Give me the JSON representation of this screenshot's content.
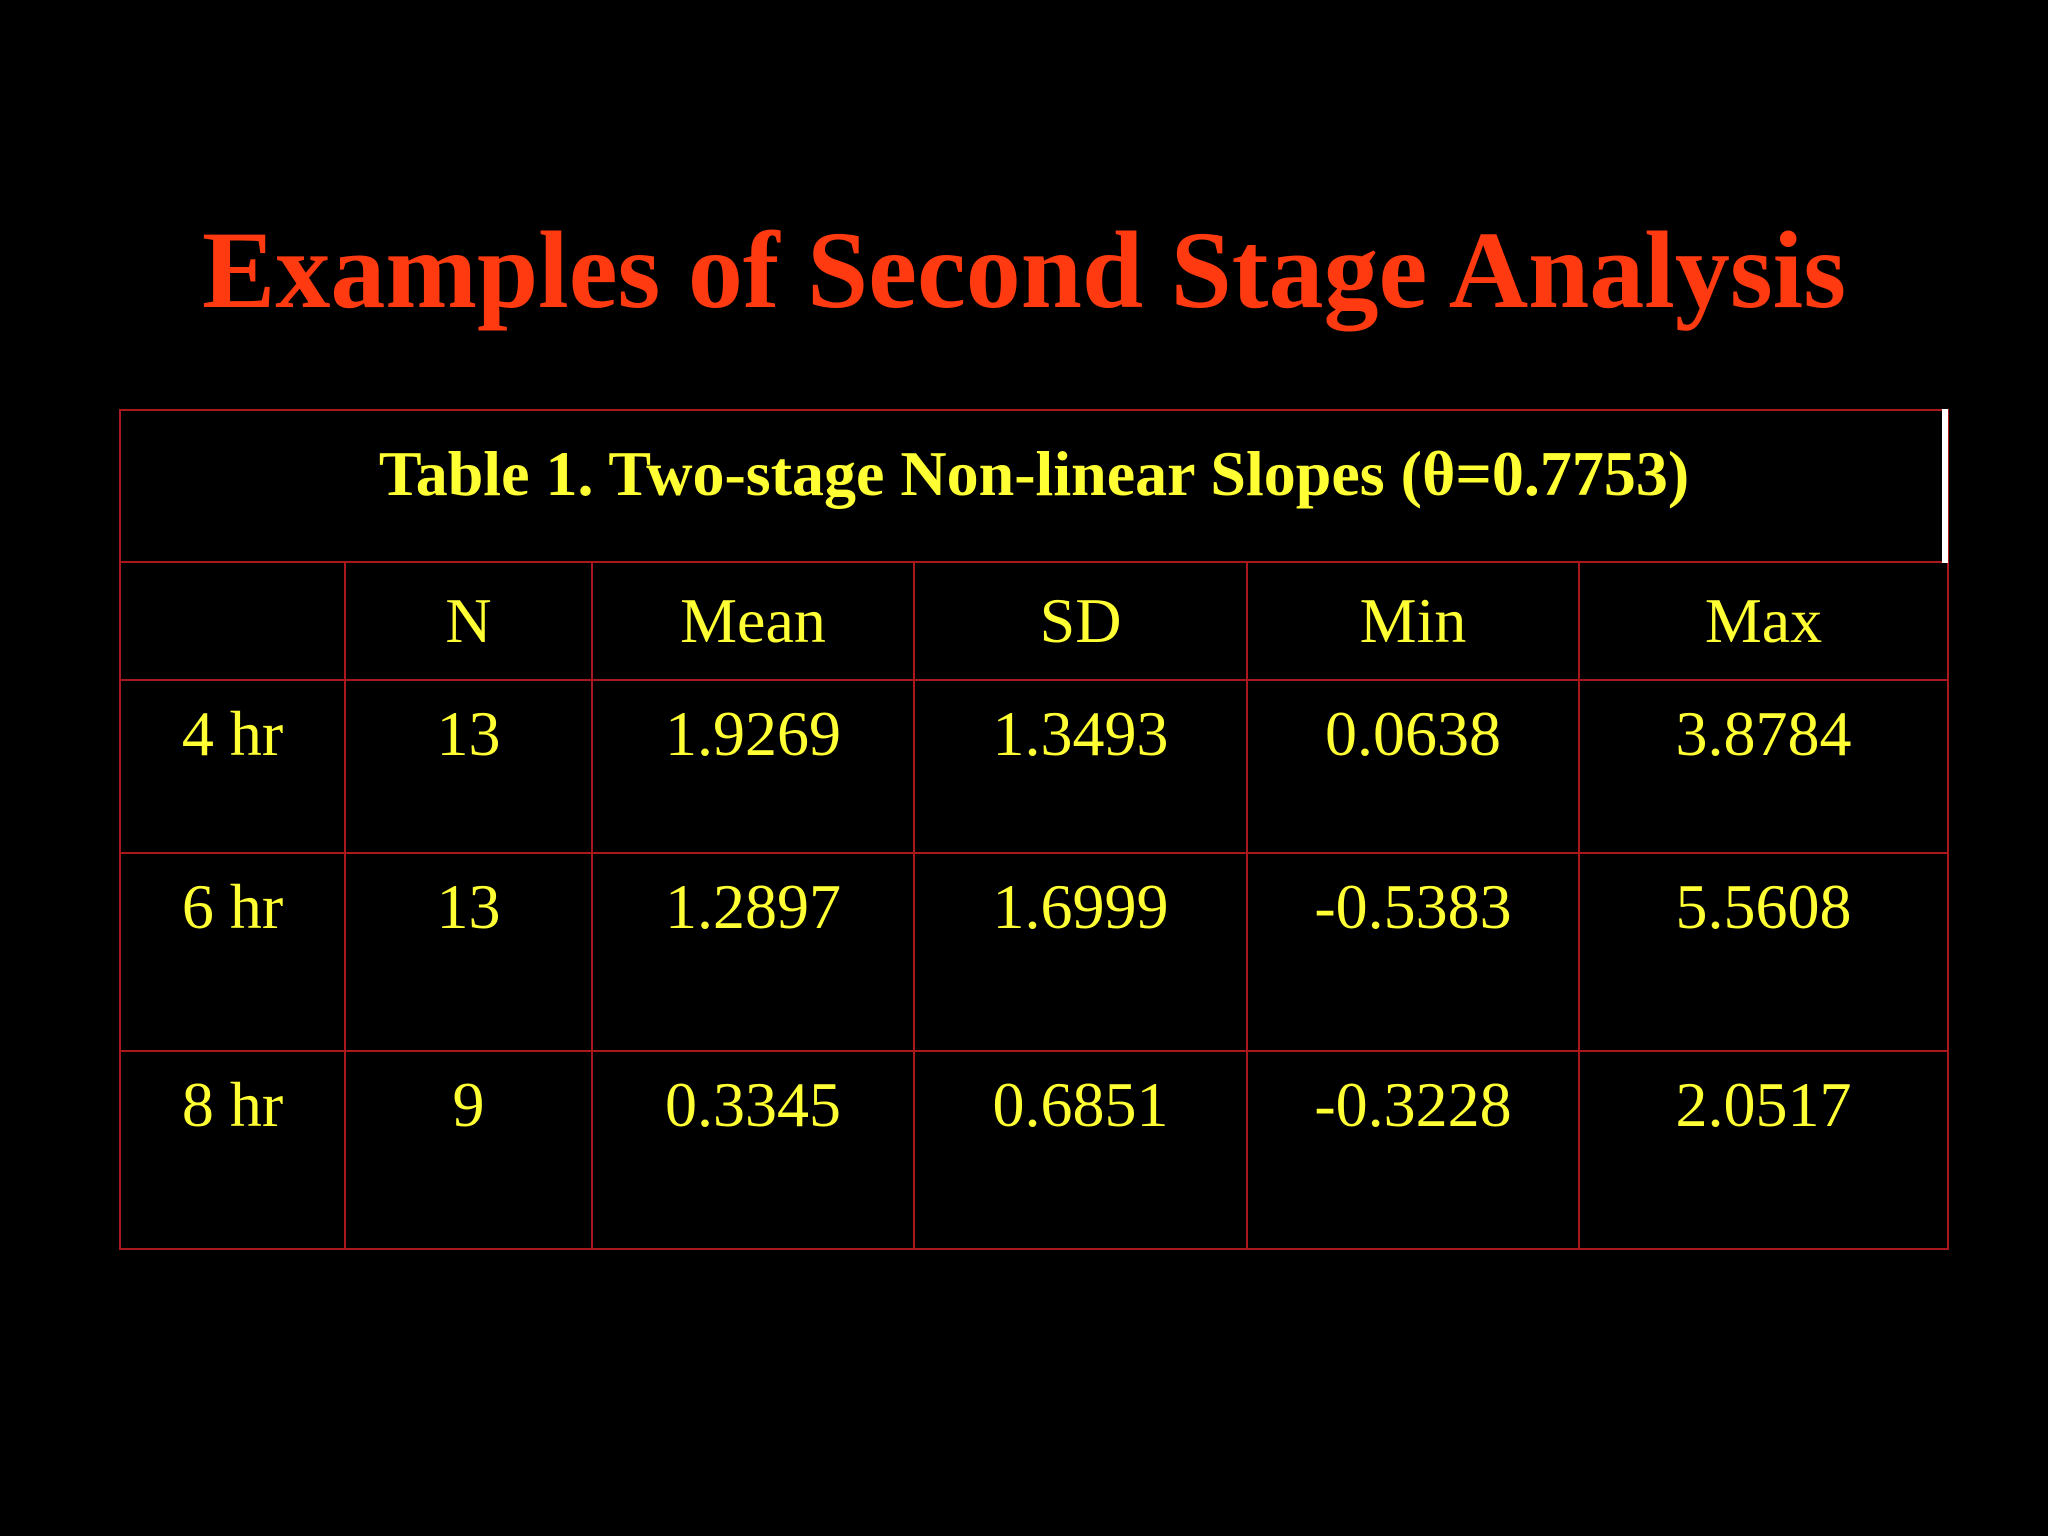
{
  "slide": {
    "title": "Examples of Second Stage Analysis"
  },
  "table": {
    "caption": "Table 1. Two-stage Non-linear Slopes (θ=0.7753)",
    "columns": [
      "",
      "N",
      "Mean",
      "SD",
      "Min",
      "Max"
    ],
    "rows": [
      {
        "label": "4 hr",
        "n": "13",
        "mean": "1.9269",
        "sd": "1.3493",
        "min": "0.0638",
        "max": "3.8784"
      },
      {
        "label": "6 hr",
        "n": "13",
        "mean": "1.2897",
        "sd": "1.6999",
        "min": "-0.5383",
        "max": "5.5608"
      },
      {
        "label": "8 hr",
        "n": "9",
        "mean": "0.3345",
        "sd": "0.6851",
        "min": "-0.3228",
        "max": "2.0517"
      }
    ]
  },
  "colors": {
    "background": "#000000",
    "title": "#ff3a10",
    "text": "#ffff33",
    "border": "#a8181c"
  }
}
